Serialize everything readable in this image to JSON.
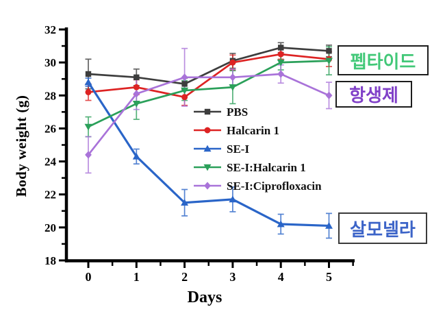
{
  "figure": {
    "background": "#ffffff",
    "axis_color": "#000000",
    "legend_text_color": "#111111"
  },
  "chart_data": {
    "type": "line",
    "title": "",
    "xlabel": "Days",
    "ylabel": "Body weight (g)",
    "x": [
      0,
      1,
      2,
      3,
      4,
      5
    ],
    "xticks": [
      "0",
      "1",
      "2",
      "3",
      "4",
      "5"
    ],
    "yticks": [
      18,
      20,
      22,
      24,
      26,
      28,
      30,
      32
    ],
    "xlim": [
      -0.5,
      5.5
    ],
    "ylim": [
      18,
      32
    ],
    "grid": false,
    "error_bars": true,
    "legend_position": "inside-middle-right",
    "series": [
      {
        "name": "PBS",
        "marker": "square",
        "color": "#3d3d3d",
        "values": [
          29.3,
          29.1,
          28.7,
          30.1,
          30.9,
          30.7
        ],
        "errors": [
          0.9,
          0.5,
          0.35,
          0.45,
          0.3,
          0.35
        ]
      },
      {
        "name": "Halcarin 1",
        "marker": "circle",
        "color": "#dd2323",
        "values": [
          28.2,
          28.5,
          27.9,
          30.0,
          30.5,
          30.2
        ],
        "errors": [
          0.5,
          0.45,
          0.5,
          0.45,
          0.3,
          0.45
        ]
      },
      {
        "name": "SE-I",
        "marker": "triangle-up",
        "color": "#2a65c8",
        "values": [
          28.8,
          24.3,
          21.5,
          21.7,
          20.2,
          20.1
        ],
        "errors": [
          0.25,
          0.45,
          0.8,
          0.75,
          0.6,
          0.75
        ]
      },
      {
        "name": "SE-I:Halcarin 1",
        "marker": "triangle-down",
        "color": "#2ba05a",
        "values": [
          26.1,
          27.5,
          28.3,
          28.5,
          30.0,
          30.1
        ],
        "errors": [
          0.6,
          0.95,
          0.6,
          1.0,
          0.45,
          0.85
        ]
      },
      {
        "name": "SE-I:Ciprofloxacin",
        "marker": "diamond",
        "color": "#a973d9",
        "values": [
          24.4,
          28.1,
          29.1,
          29.1,
          29.3,
          28.0
        ],
        "errors": [
          1.1,
          0.95,
          1.75,
          0.5,
          0.55,
          0.8
        ]
      }
    ],
    "annotations": [
      {
        "id": "peptide",
        "text": "펩타이드",
        "color": "#42c878"
      },
      {
        "id": "antibiotic",
        "text": "항생제",
        "color": "#8040c8"
      },
      {
        "id": "salmonella",
        "text": "살모넬라",
        "color": "#3c64c8"
      }
    ]
  }
}
